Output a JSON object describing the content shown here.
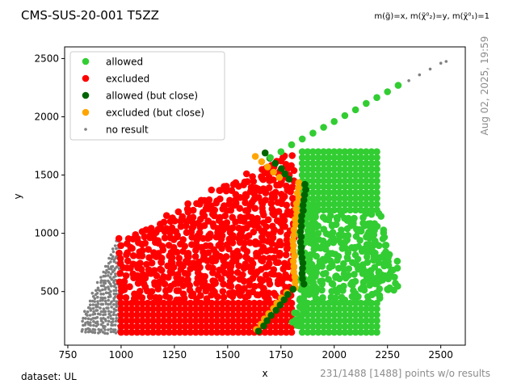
{
  "chart_data": {
    "type": "scatter",
    "title": "CMS-SUS-20-001 T5ZZ",
    "subtitle": "m(g̃)=x, m(χ̃⁰₂)=y, m(χ̃⁰₁)=1",
    "xlabel": "x",
    "ylabel": "y",
    "xlim": [
      735,
      2615
    ],
    "ylim": [
      40,
      2600
    ],
    "xticks": [
      750,
      1000,
      1250,
      1500,
      1750,
      2000,
      2250,
      2500
    ],
    "yticks": [
      500,
      1000,
      1500,
      2000,
      2500
    ],
    "grid": false,
    "legend_placement": "top-left",
    "side_text": "Aug 02, 2025, 19:59",
    "footer_left": "dataset: UL",
    "footer_right": "231/1488 [1488] points w/o results",
    "colors": {
      "allowed": "#32cd32",
      "excluded": "#ff0000",
      "allowed_close": "#006400",
      "excluded_close": "#ffa500",
      "no_result": "#808080"
    },
    "series": [
      {
        "name": "allowed",
        "marker": "circle",
        "region": "x 1800–2300, y 150–1700; diagonal x≈y line from 1650 to 2275"
      },
      {
        "name": "excluded",
        "marker": "circle",
        "region": "x 1000–1800, y 150 up to ~0.95·x"
      },
      {
        "name": "allowed (but close)",
        "marker": "circle",
        "region": "band near x≈1820–1880"
      },
      {
        "name": "excluded (but close)",
        "marker": "circle",
        "region": "band near x≈1790–1840"
      },
      {
        "name": "no result",
        "marker": "small-dot",
        "region": "x 800–1000, y 150–1000; diagonal x≈y line from 2300 to 2525"
      }
    ],
    "highlight_points": {
      "diagonal_allowed": [
        [
          1700,
          1650
        ],
        [
          1750,
          1700
        ],
        [
          1800,
          1760
        ],
        [
          1850,
          1810
        ],
        [
          1900,
          1860
        ],
        [
          1950,
          1910
        ],
        [
          2000,
          1960
        ],
        [
          2050,
          2010
        ],
        [
          2100,
          2060
        ],
        [
          2150,
          2115
        ],
        [
          2200,
          2165
        ],
        [
          2250,
          2215
        ],
        [
          2300,
          2270
        ]
      ],
      "diagonal_no_result": [
        [
          2350,
          2310
        ],
        [
          2400,
          2360
        ],
        [
          2450,
          2410
        ],
        [
          2500,
          2460
        ],
        [
          2525,
          2475
        ]
      ]
    }
  }
}
